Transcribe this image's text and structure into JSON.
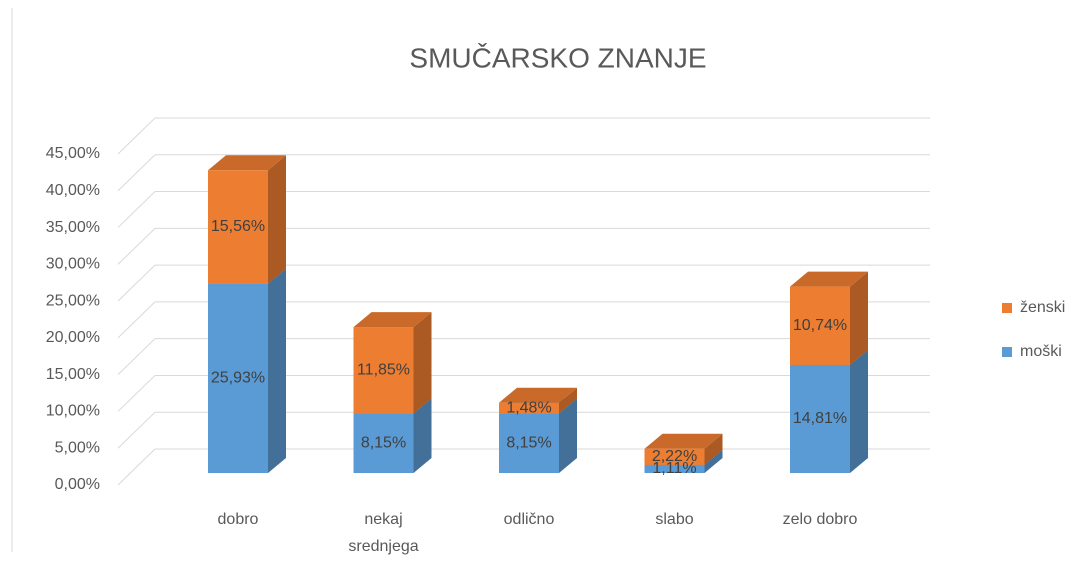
{
  "chart_data": {
    "type": "bar3d_stacked",
    "title": "SMUČARSKO ZNANJE",
    "categories": [
      "dobro",
      "nekaj srednjega",
      "odlično",
      "slabo",
      "zelo dobro"
    ],
    "series": [
      {
        "name": "moški",
        "color": "#5b9bd5",
        "values": [
          25.93,
          8.15,
          8.15,
          1.11,
          14.81
        ],
        "value_labels": [
          "25,93%",
          "8,15%",
          "8,15%",
          "1,11%",
          "14,81%"
        ]
      },
      {
        "name": "ženski",
        "color": "#ed7d31",
        "values": [
          15.56,
          11.85,
          1.48,
          2.22,
          10.74
        ],
        "value_labels": [
          "15,56%",
          "11,85%",
          "1,48%",
          "2,22%",
          "10,74%"
        ]
      }
    ],
    "ylim": [
      0,
      45
    ],
    "yticks": [
      {
        "value": 0,
        "label": "0,00%"
      },
      {
        "value": 5,
        "label": "5,00%"
      },
      {
        "value": 10,
        "label": "10,00%"
      },
      {
        "value": 15,
        "label": "15,00%"
      },
      {
        "value": 20,
        "label": "20,00%"
      },
      {
        "value": 25,
        "label": "25,00%"
      },
      {
        "value": 30,
        "label": "30,00%"
      },
      {
        "value": 35,
        "label": "35,00%"
      },
      {
        "value": 40,
        "label": "40,00%"
      },
      {
        "value": 45,
        "label": "45,00%"
      }
    ],
    "grid": true,
    "legend": "right"
  }
}
